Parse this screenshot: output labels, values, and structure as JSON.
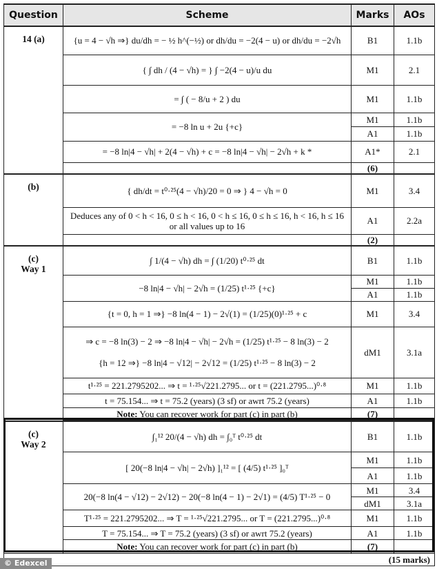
{
  "headers": {
    "question": "Question",
    "scheme": "Scheme",
    "marks": "Marks",
    "aos": "AOs"
  },
  "part_a": {
    "label": "14 (a)",
    "rows": [
      {
        "scheme": "{u = 4 − √h ⇒}  du/dh = − ½ h^(−½)  or  dh/du = −2(4 − u)  or  dh/du = −2√h",
        "marks": [
          "B1"
        ],
        "aos": [
          "1.1b"
        ]
      },
      {
        "scheme": "{ ∫ dh / (4 − √h) = }   ∫ −2(4 − u)/u du",
        "marks": [
          "M1"
        ],
        "aos": [
          "2.1"
        ]
      },
      {
        "scheme": "= ∫ ( − 8/u + 2 ) du",
        "marks": [
          "M1"
        ],
        "aos": [
          "1.1b"
        ]
      },
      {
        "scheme": "= −8 ln u + 2u {+c}",
        "marks": [
          "M1",
          "A1"
        ],
        "aos": [
          "1.1b",
          "1.1b"
        ]
      },
      {
        "scheme": "= −8 ln|4 − √h| + 2(4 − √h) + c = −8 ln|4 − √h| − 2√h + k  *",
        "marks": [
          "A1*"
        ],
        "aos": [
          "2.1"
        ]
      }
    ],
    "total": "(6)"
  },
  "part_b": {
    "label": "(b)",
    "rows": [
      {
        "scheme": "{ dh/dt = t⁰·²⁵(4 − √h)/20 = 0 ⇒ }  4 − √h = 0",
        "marks": [
          "M1"
        ],
        "aos": [
          "3.4"
        ]
      },
      {
        "scheme": "Deduces any of 0 < h < 16, 0 ≤ h < 16, 0 < h ≤ 16, 0 ≤ h ≤ 16, h < 16, h ≤ 16 or all values up to 16",
        "marks": [
          "A1"
        ],
        "aos": [
          "2.2a"
        ]
      }
    ],
    "total": "(2)"
  },
  "part_c1": {
    "label": "(c)",
    "way": "Way 1",
    "rows": [
      {
        "scheme": "∫ 1/(4 − √h) dh = ∫ (1/20) t⁰·²⁵ dt",
        "marks": [
          "B1"
        ],
        "aos": [
          "1.1b"
        ]
      },
      {
        "scheme": "−8 ln|4 − √h| − 2√h = (1/25) t¹·²⁵  {+c}",
        "marks": [
          "M1",
          "A1"
        ],
        "aos": [
          "1.1b",
          "1.1b"
        ]
      },
      {
        "scheme": "{t = 0, h = 1 ⇒} −8 ln(4 − 1) − 2√(1) = (1/25)(0)¹·²⁵ + c",
        "marks": [
          "M1"
        ],
        "aos": [
          "3.4"
        ]
      },
      {
        "scheme": "⇒ c = −8 ln(3) − 2 ⇒  −8 ln|4 − √h| − 2√h = (1/25) t¹·²⁵ − 8 ln(3) − 2",
        "scheme2": "{h = 12 ⇒} −8 ln|4 − √12| − 2√12 = (1/25) t¹·²⁵ − 8 ln(3) − 2",
        "marks": [
          "dM1"
        ],
        "aos": [
          "3.1a"
        ]
      },
      {
        "scheme": "t¹·²⁵ = 221.2795202... ⇒ t = ¹·²⁵√221.2795...  or  t = (221.2795...)⁰·⁸",
        "marks": [
          "M1"
        ],
        "aos": [
          "1.1b"
        ]
      },
      {
        "scheme": "t = 75.154... ⇒ t = 75.2 (years) (3 sf)  or  awrt 75.2 (years)",
        "marks": [
          "A1"
        ],
        "aos": [
          "1.1b"
        ]
      }
    ],
    "note_label": "Note:",
    "note": "You can recover work for part (c) in part (b)",
    "total": "(7)"
  },
  "part_c2": {
    "label": "(c)",
    "way": "Way 2",
    "rows": [
      {
        "scheme": "∫₁¹² 20/(4 − √h) dh = ∫₀ᵀ t⁰·²⁵ dt",
        "marks": [
          "B1"
        ],
        "aos": [
          "1.1b"
        ]
      },
      {
        "scheme": "[ 20(−8 ln|4 − √h| − 2√h) ]₁¹² = [ (4/5) t¹·²⁵ ]₀ᵀ",
        "marks": [
          "M1",
          "A1"
        ],
        "aos": [
          "1.1b",
          "1.1b"
        ]
      },
      {
        "scheme": "20(−8 ln(4 − √12) − 2√12) − 20(−8 ln(4 − 1) − 2√1) = (4/5) T¹·²⁵ − 0",
        "marks": [
          "M1",
          "dM1"
        ],
        "aos": [
          "3.4",
          "3.1a"
        ]
      },
      {
        "scheme": "T¹·²⁵ = 221.2795202... ⇒ T = ¹·²⁵√221.2795...  or  T = (221.2795...)⁰·⁸",
        "marks": [
          "M1"
        ],
        "aos": [
          "1.1b"
        ]
      },
      {
        "scheme": "T = 75.154... ⇒ T = 75.2 (years) (3 sf)  or  awrt 75.2 (years)",
        "marks": [
          "A1"
        ],
        "aos": [
          "1.1b"
        ]
      }
    ],
    "note_label": "Note:",
    "note": "You can recover work for part (c) in part (b)",
    "total": "(7)"
  },
  "grand_total": "(15 marks)",
  "watermark": "© Edexcel"
}
